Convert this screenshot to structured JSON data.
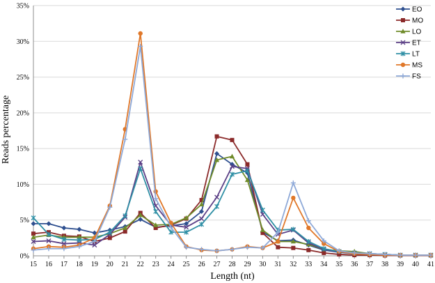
{
  "chart_data": {
    "type": "line",
    "title": "",
    "xlabel": "Length (nt)",
    "ylabel": "Reads percentage",
    "x": [
      15,
      16,
      17,
      18,
      19,
      20,
      21,
      22,
      23,
      24,
      25,
      26,
      27,
      28,
      29,
      30,
      31,
      32,
      33,
      34,
      35,
      36,
      37,
      38,
      39,
      40,
      41
    ],
    "ylim": [
      0,
      35
    ],
    "y_ticks": [
      "0%",
      "5%",
      "10%",
      "15%",
      "20%",
      "25%",
      "30%",
      "35%"
    ],
    "y_tick_values": [
      0,
      5,
      10,
      15,
      20,
      25,
      30,
      35
    ],
    "grid": "horizontal",
    "legend_position": "top-right",
    "series": [
      {
        "name": "EO",
        "color": "#2e4f8f",
        "marker": "diamond",
        "values": [
          4.5,
          4.5,
          3.9,
          3.7,
          3.2,
          3.6,
          4.1,
          5.1,
          4.0,
          4.2,
          4.5,
          6.2,
          14.3,
          12.8,
          11.6,
          3.3,
          2.1,
          2.2,
          1.5,
          0.8,
          0.5,
          0.3,
          0.2,
          0.1,
          0.1,
          0.1,
          0.1
        ]
      },
      {
        "name": "MO",
        "color": "#8b2a2a",
        "marker": "square",
        "values": [
          3.1,
          3.3,
          2.8,
          2.7,
          2.0,
          2.5,
          3.4,
          6.0,
          3.9,
          4.3,
          5.2,
          7.8,
          16.7,
          16.2,
          12.8,
          3.2,
          1.2,
          1.1,
          0.8,
          0.4,
          0.2,
          0.1,
          0.1,
          0.05,
          0.05,
          0.05,
          0.05
        ]
      },
      {
        "name": "LO",
        "color": "#6f8b2a",
        "marker": "triangle",
        "values": [
          2.6,
          2.9,
          2.6,
          2.6,
          2.6,
          3.1,
          3.9,
          5.7,
          4.3,
          4.4,
          5.3,
          7.2,
          13.4,
          13.9,
          10.6,
          3.6,
          2.0,
          2.0,
          1.6,
          0.9,
          0.7,
          0.6,
          0.3,
          0.2,
          0.1,
          0.1,
          0.1
        ]
      },
      {
        "name": "ET",
        "color": "#5b3f86",
        "marker": "x",
        "values": [
          2.0,
          2.1,
          1.7,
          1.8,
          1.5,
          3.0,
          5.4,
          13.1,
          7.0,
          4.3,
          4.0,
          5.2,
          8.2,
          12.5,
          12.2,
          5.8,
          3.0,
          3.6,
          1.8,
          0.9,
          0.6,
          0.4,
          0.3,
          0.2,
          0.1,
          0.1,
          0.1
        ]
      },
      {
        "name": "LT",
        "color": "#2f8fa5",
        "marker": "star",
        "values": [
          5.3,
          3.0,
          2.3,
          2.2,
          2.3,
          3.3,
          5.6,
          12.2,
          6.2,
          3.3,
          3.3,
          4.4,
          6.9,
          11.4,
          11.9,
          6.4,
          3.6,
          3.7,
          2.0,
          1.0,
          0.6,
          0.4,
          0.3,
          0.2,
          0.1,
          0.1,
          0.1
        ]
      },
      {
        "name": "MS",
        "color": "#e0782a",
        "marker": "circle",
        "values": [
          1.0,
          1.3,
          1.2,
          1.5,
          2.5,
          7.0,
          17.7,
          31.1,
          9.0,
          4.6,
          1.3,
          0.8,
          0.7,
          0.9,
          1.3,
          1.1,
          2.0,
          8.1,
          3.9,
          1.7,
          0.6,
          0.3,
          0.2,
          0.1,
          0.1,
          0.1,
          0.1
        ]
      },
      {
        "name": "FS",
        "color": "#8ea9d8",
        "marker": "plus",
        "values": [
          0.8,
          1.0,
          1.0,
          1.3,
          2.0,
          6.8,
          16.3,
          29.3,
          8.0,
          4.0,
          1.2,
          0.9,
          0.7,
          0.9,
          1.2,
          1.1,
          3.3,
          10.2,
          4.9,
          2.1,
          0.7,
          0.4,
          0.3,
          0.2,
          0.1,
          0.1,
          0.1
        ]
      }
    ]
  }
}
